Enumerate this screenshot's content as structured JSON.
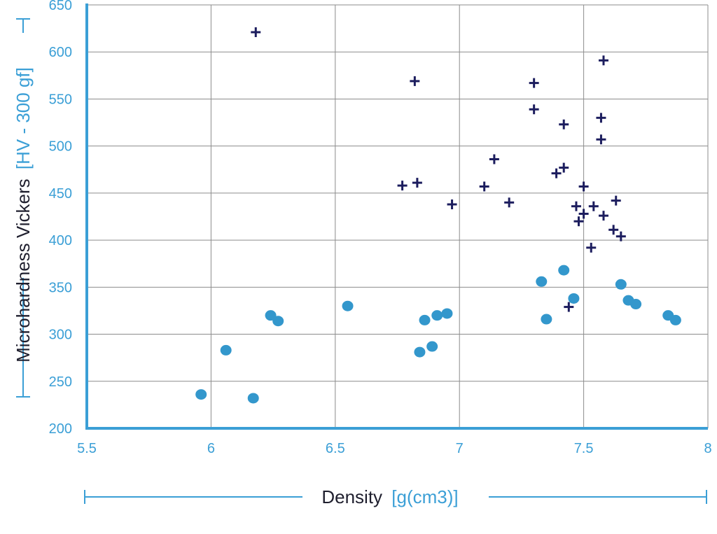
{
  "chart_data": {
    "type": "scatter",
    "xlabel": {
      "text": "Density",
      "unit": "[g(cm3)]"
    },
    "ylabel": {
      "text": "Microhardness Vickers",
      "unit": "[HV - 300 gf]"
    },
    "xlim": [
      5.5,
      8
    ],
    "ylim": [
      200,
      650
    ],
    "xticks": [
      "5.5",
      "6",
      "6.5",
      "7",
      "7.5",
      "8"
    ],
    "yticks": [
      "200",
      "250",
      "300",
      "350",
      "400",
      "450",
      "500",
      "550",
      "600",
      "650"
    ],
    "grid": true,
    "series": [
      {
        "marker": "plus",
        "color": "#1c1d5e",
        "points": [
          [
            6.18,
            621
          ],
          [
            6.82,
            569
          ],
          [
            7.3,
            567
          ],
          [
            7.3,
            539
          ],
          [
            7.58,
            591
          ],
          [
            7.57,
            530
          ],
          [
            7.57,
            507
          ],
          [
            7.42,
            523
          ],
          [
            7.14,
            486
          ],
          [
            7.42,
            477
          ],
          [
            7.39,
            471
          ],
          [
            6.77,
            458
          ],
          [
            6.83,
            461
          ],
          [
            7.1,
            457
          ],
          [
            7.2,
            440
          ],
          [
            6.97,
            438
          ],
          [
            7.5,
            457
          ],
          [
            7.47,
            436
          ],
          [
            7.5,
            428
          ],
          [
            7.54,
            436
          ],
          [
            7.63,
            442
          ],
          [
            7.58,
            426
          ],
          [
            7.48,
            420
          ],
          [
            7.62,
            411
          ],
          [
            7.65,
            404
          ],
          [
            7.53,
            392
          ],
          [
            7.44,
            329
          ]
        ]
      },
      {
        "marker": "circle",
        "color": "#3397cc",
        "points": [
          [
            5.96,
            236
          ],
          [
            6.06,
            283
          ],
          [
            6.17,
            232
          ],
          [
            6.24,
            320
          ],
          [
            6.27,
            314
          ],
          [
            6.55,
            330
          ],
          [
            6.84,
            281
          ],
          [
            6.86,
            315
          ],
          [
            6.89,
            287
          ],
          [
            6.91,
            320
          ],
          [
            6.95,
            322
          ],
          [
            7.33,
            356
          ],
          [
            7.35,
            316
          ],
          [
            7.42,
            368
          ],
          [
            7.46,
            338
          ],
          [
            7.65,
            353
          ],
          [
            7.68,
            336
          ],
          [
            7.71,
            332
          ],
          [
            7.84,
            320
          ],
          [
            7.87,
            315
          ]
        ]
      }
    ]
  }
}
